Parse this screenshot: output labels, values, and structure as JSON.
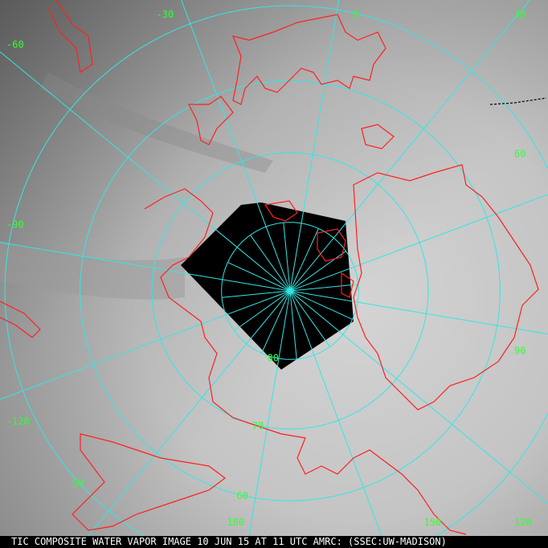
{
  "caption": "TIC COMPOSITE WATER VAPOR IMAGE 10 JUN 15 AT 11 UTC AMRC: (SSEC:UW-MADISON)",
  "cursor_marker": "3",
  "projection": "polar stereographic, north pole",
  "colors": {
    "grid": "#33e6e6",
    "coastline": "#ff2020",
    "labels": "#33ff33",
    "missing_data": "#000000"
  },
  "longitude_labels": [
    {
      "lon": -30,
      "text": "-30"
    },
    {
      "lon": 0,
      "text": "0"
    },
    {
      "lon": 30,
      "text": "30"
    },
    {
      "lon": 60,
      "text": "60"
    },
    {
      "lon": 90,
      "text": "90"
    },
    {
      "lon": 120,
      "text": "120"
    },
    {
      "lon": 150,
      "text": "150"
    },
    {
      "lon": 180,
      "text": "180"
    },
    {
      "lon": -120,
      "text": "-120"
    },
    {
      "lon": -90,
      "text": "-90"
    },
    {
      "lon": -60,
      "text": "-60"
    }
  ],
  "latitude_labels": [
    {
      "lat": 80,
      "text": "80"
    },
    {
      "lat": 70,
      "text": "70"
    },
    {
      "lat": 60,
      "text": "60"
    },
    {
      "lat": 50,
      "text": "50"
    }
  ]
}
